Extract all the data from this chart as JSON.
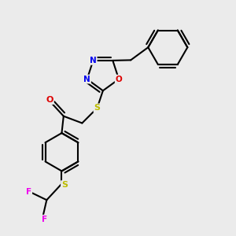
{
  "background_color": "#ebebeb",
  "atom_colors": {
    "N": "#0000ee",
    "O": "#dd0000",
    "S": "#bbbb00",
    "F": "#ee00ee",
    "C": "#000000"
  },
  "bond_lw": 1.5
}
